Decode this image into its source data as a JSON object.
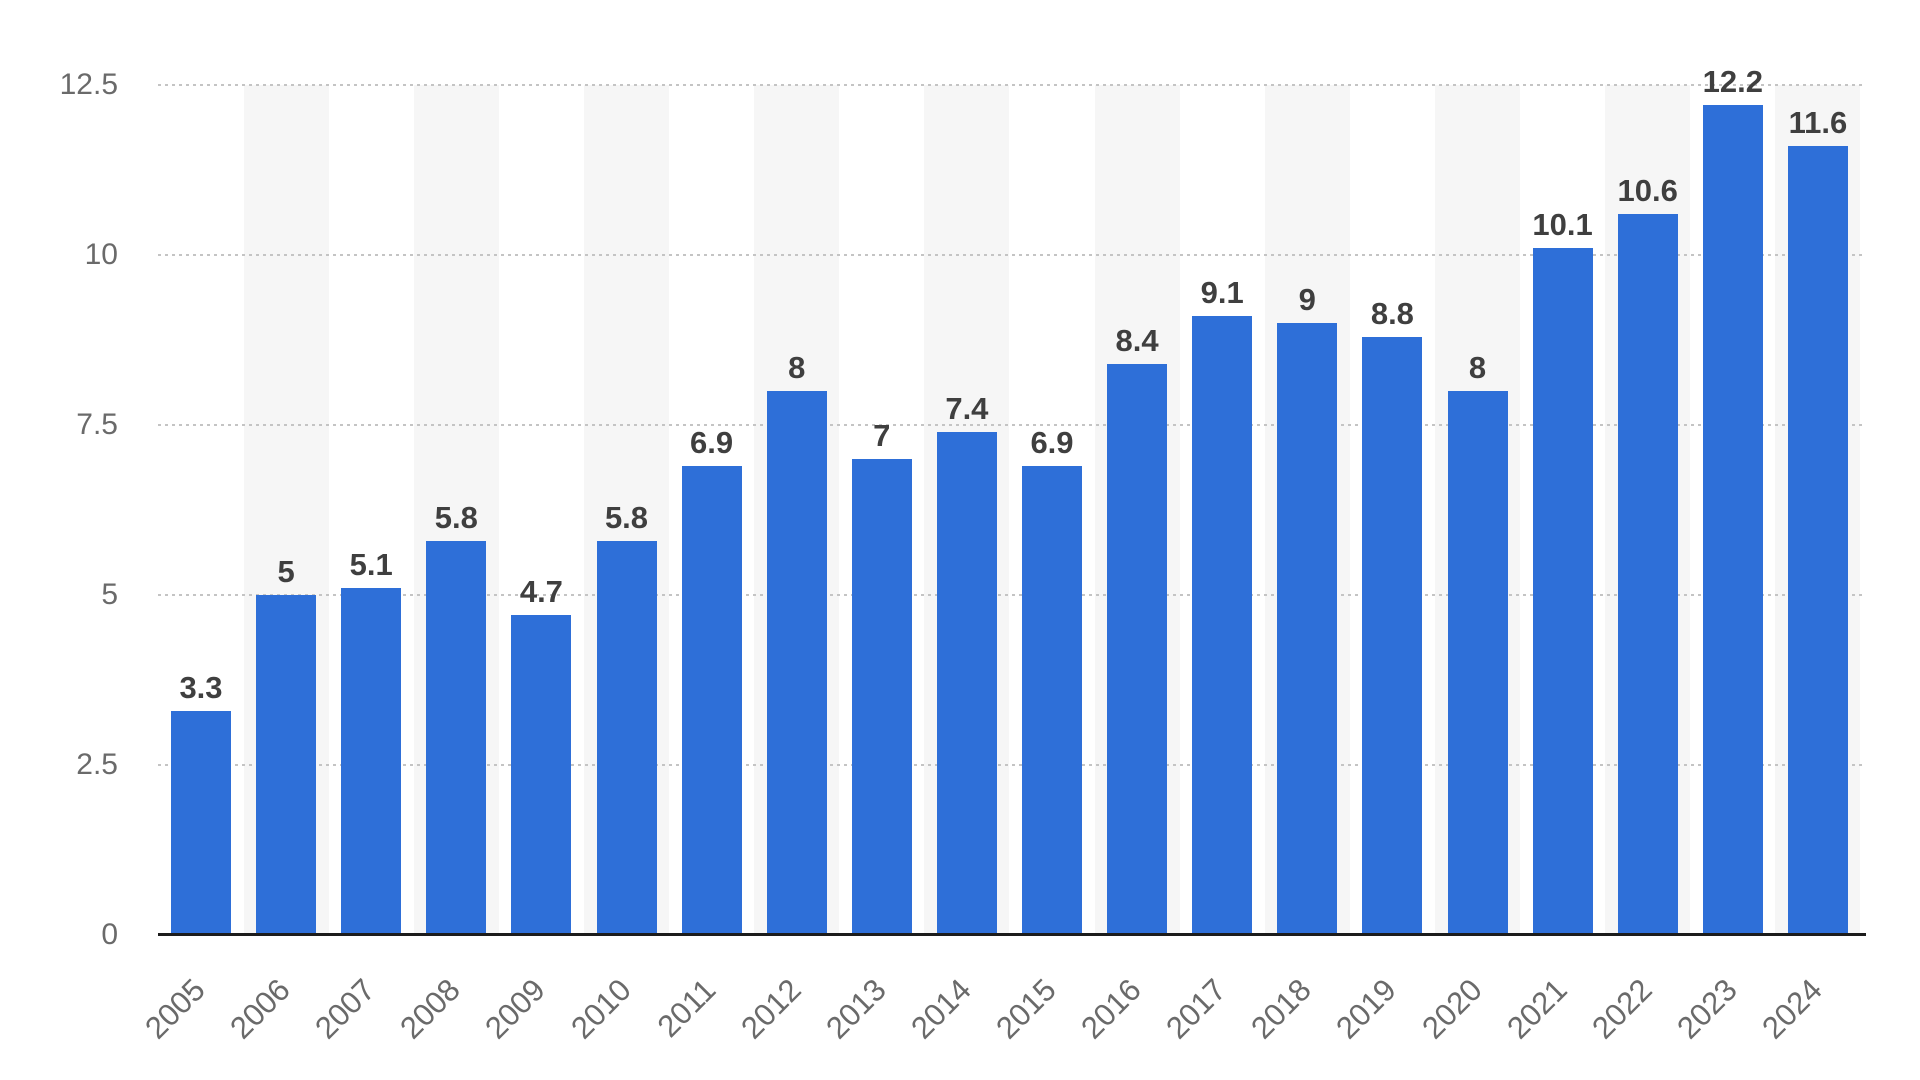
{
  "chart_data": {
    "type": "bar",
    "title": "",
    "xlabel": "",
    "ylabel": "",
    "categories": [
      "2005",
      "2006",
      "2007",
      "2008",
      "2009",
      "2010",
      "2011",
      "2012",
      "2013",
      "2014",
      "2015",
      "2016",
      "2017",
      "2018",
      "2019",
      "2020",
      "2021",
      "2022",
      "2023",
      "2024"
    ],
    "values": [
      3.3,
      5,
      5.1,
      5.8,
      4.7,
      5.8,
      6.9,
      8,
      7,
      7.4,
      6.9,
      8.4,
      9.1,
      9,
      8.8,
      8,
      10.1,
      10.6,
      12.2,
      11.6
    ],
    "value_labels": [
      "3.3",
      "5",
      "5.1",
      "5.8",
      "4.7",
      "5.8",
      "6.9",
      "8",
      "7",
      "7.4",
      "6.9",
      "8.4",
      "9.1",
      "9",
      "8.8",
      "8",
      "10.1",
      "10.6",
      "12.2",
      "11.6"
    ],
    "ylim": [
      0,
      12.5
    ],
    "ytick_labels": [
      "0",
      "2.5",
      "5",
      "7.5",
      "10",
      "12.5"
    ],
    "ytick_values": [
      0,
      2.5,
      5,
      7.5,
      10,
      12.5
    ],
    "grid": "horizontal-dotted",
    "legend": "none",
    "background_stripes": "alternating-columns",
    "colors": {
      "bar": "#2E6FD8",
      "value_label": "#3F3F3F",
      "axis_label": "#6A6A6A",
      "gridline": "#C4C4C4",
      "baseline": "#1C1C1C",
      "stripe": "#F6F6F6",
      "background": "#FFFFFF"
    }
  }
}
